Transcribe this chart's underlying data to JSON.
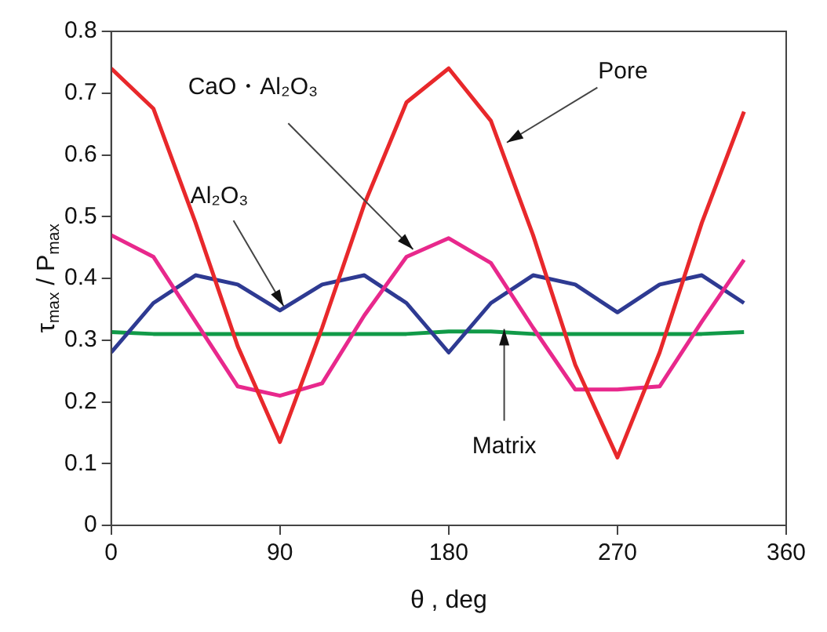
{
  "chart_data": {
    "type": "line",
    "xlabel": "θ , deg",
    "ylabel": "τ$_{max}$ / P$_{max}$",
    "x": [
      0,
      22.5,
      45,
      67.5,
      90,
      112.5,
      135,
      157.5,
      180,
      202.5,
      225,
      247.5,
      270,
      292.5,
      315,
      337.5
    ],
    "series": [
      {
        "color": "#e8282b",
        "values": [
          0.74,
          0.675,
          0.49,
          0.29,
          0.135,
          0.32,
          0.52,
          0.685,
          0.74,
          0.655,
          0.47,
          0.26,
          0.11,
          0.28,
          0.49,
          0.67
        ]
      },
      {
        "color": "#e8288c",
        "values": [
          0.47,
          0.435,
          0.33,
          0.225,
          0.21,
          0.23,
          0.34,
          0.435,
          0.465,
          0.425,
          0.32,
          0.22,
          0.22,
          0.225,
          0.33,
          0.43
        ]
      },
      {
        "color": "#2e3a92",
        "values": [
          0.28,
          0.36,
          0.405,
          0.39,
          0.348,
          0.39,
          0.405,
          0.36,
          0.28,
          0.36,
          0.405,
          0.39,
          0.345,
          0.39,
          0.405,
          0.36
        ]
      },
      {
        "color": "#119a48",
        "values": [
          0.313,
          0.31,
          0.31,
          0.31,
          0.31,
          0.31,
          0.31,
          0.31,
          0.314,
          0.314,
          0.31,
          0.31,
          0.31,
          0.31,
          0.31,
          0.313
        ]
      }
    ],
    "xlim": [
      0,
      360
    ],
    "xticks": [
      0,
      90,
      180,
      270,
      360
    ],
    "ylim": [
      0,
      0.8
    ],
    "yticks": [
      {
        "value": 0,
        "label": "0"
      },
      0.1,
      0.2,
      0.3,
      0.4,
      0.5,
      0.6,
      0.7,
      0.8
    ],
    "grid": false,
    "legend": false,
    "marker": "none",
    "line_style": "solid",
    "annotations": [
      {
        "text": "Pore",
        "x": 211,
        "y": 0.62
      },
      {
        "text": "CaO・Al₂O₃",
        "x": 161,
        "y": 0.447
      },
      {
        "text": "Al₂O₃",
        "x": 92,
        "y": 0.355
      },
      {
        "text": "Matrix",
        "x": 209.6,
        "y": 0.318
      }
    ]
  }
}
